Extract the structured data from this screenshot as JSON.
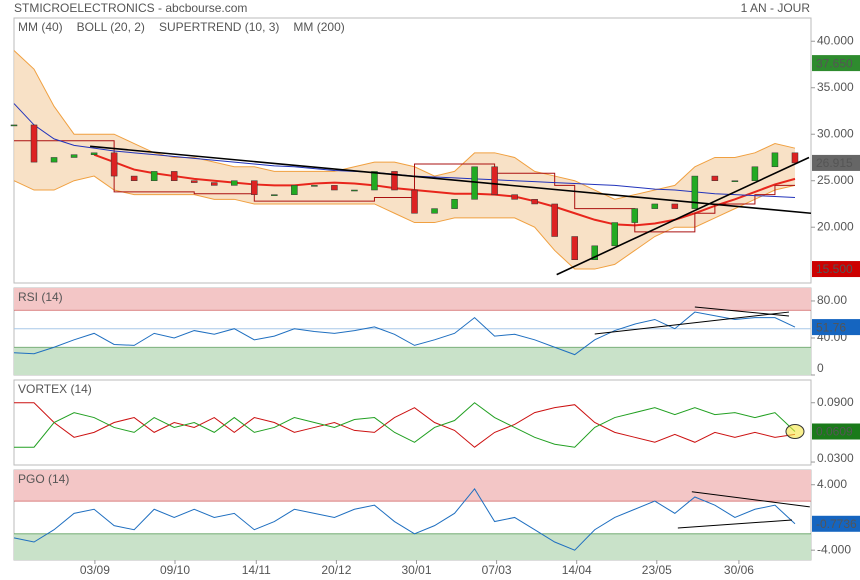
{
  "header": {
    "title": "STMICROELECTRONICS - abcbourse.com",
    "period": "1 AN - JOUR"
  },
  "chart_data": [
    {
      "type": "candlestick",
      "xlim": [
        0,
        39.8
      ],
      "ylim": [
        14,
        42.5
      ],
      "yticks": [
        {
          "value": 40,
          "label": "40.000"
        },
        {
          "value": 35,
          "label": "35.000"
        },
        {
          "value": 30,
          "label": "30.000"
        },
        {
          "value": 25,
          "label": "25.000"
        },
        {
          "value": 20,
          "label": "20.000"
        }
      ],
      "up_color": "#22aa22",
      "down_color": "#dd2222",
      "close": [
        31,
        27,
        27.5,
        27.8,
        28,
        25.5,
        25,
        26,
        25,
        24.8,
        24.5,
        25,
        23.5,
        23.5,
        24.5,
        24.5,
        24,
        24,
        26,
        24,
        21.5,
        22,
        23,
        26.5,
        23.5,
        23,
        22.5,
        19,
        16.5,
        18,
        20.5,
        22,
        22.5,
        22,
        25.5,
        25,
        25,
        26.5,
        28,
        26.915
      ],
      "bands": [
        {
          "name": "BOLL (20, 2)",
          "color": "#f0a040",
          "fill": "#f6d9b8",
          "upper": [
            39,
            37,
            33,
            30,
            30,
            30,
            29,
            28,
            27.5,
            27.5,
            27,
            26.5,
            26.5,
            26,
            26,
            26,
            26,
            26.5,
            27,
            27,
            26.5,
            25.5,
            26,
            28,
            28,
            27.5,
            26,
            25.5,
            25,
            24,
            23,
            23.5,
            24,
            24.5,
            26.5,
            27.5,
            27.5,
            28,
            29,
            28.5
          ],
          "lower": [
            25,
            24,
            24,
            25,
            25.5,
            24,
            23.5,
            23.5,
            23.5,
            23.5,
            23,
            23,
            22.5,
            22.5,
            22.5,
            22.5,
            22.5,
            22.5,
            22.5,
            21.5,
            20.5,
            20.5,
            21,
            21,
            21,
            21,
            20,
            17.5,
            15.5,
            15.5,
            16,
            17.5,
            19,
            20,
            20,
            21,
            22,
            23,
            24,
            24.5
          ]
        }
      ],
      "series": [
        {
          "name": "MM (40)",
          "color": "#e8261c",
          "width": 2,
          "values": [
            null,
            null,
            null,
            null,
            27.8,
            27,
            26.2,
            25.8,
            25.5,
            25.2,
            25,
            24.8,
            24.6,
            24.5,
            24.5,
            24.7,
            24.8,
            24.7,
            24.5,
            24.2,
            24,
            23.8,
            23.6,
            23.6,
            23.5,
            23.3,
            22.8,
            22.2,
            21.5,
            20.8,
            20.3,
            20.2,
            20.4,
            20.8,
            21.5,
            22.3,
            23,
            23.8,
            24.6,
            25.2
          ]
        },
        {
          "name": "SUPERTREND (10, 3)",
          "color": "#aa1010",
          "width": 1,
          "step": true,
          "values": [
            29.3,
            29.3,
            29.3,
            29.3,
            29.3,
            23.8,
            23.8,
            23.8,
            23.8,
            23.6,
            23.6,
            23.6,
            22.8,
            22.8,
            22.8,
            22.8,
            22.8,
            22.8,
            23.2,
            23.2,
            26.8,
            26.8,
            26.8,
            26.8,
            25.8,
            25.8,
            25.8,
            24.5,
            22,
            22,
            22,
            19.5,
            19.5,
            19.5,
            21.5,
            22.5,
            22.5,
            23.5,
            24.5,
            24.5
          ]
        },
        {
          "name": "MM (200)",
          "color": "#2233bb",
          "width": 1,
          "values": [
            33.3,
            31,
            29.5,
            28.8,
            28.5,
            28.2,
            28,
            27.8,
            27.6,
            27.4,
            27.2,
            27,
            26.8,
            26.6,
            26.5,
            26.3,
            26.1,
            26,
            25.9,
            25.7,
            25.5,
            25.4,
            25.3,
            25.2,
            25.1,
            25,
            24.9,
            24.8,
            24.7,
            24.6,
            24.5,
            24.3,
            24.1,
            24,
            23.8,
            23.6,
            23.5,
            23.4,
            23.3,
            23.2
          ]
        }
      ],
      "trendlines": [
        {
          "color": "#000000",
          "x": [
            3.8,
            39.8
          ],
          "y": [
            28.7,
            21.5
          ]
        },
        {
          "color": "#000000",
          "x": [
            27.1,
            39.7
          ],
          "y": [
            14.9,
            27.5
          ]
        }
      ],
      "badges": [
        {
          "value": 37.65,
          "label": "37.650",
          "color": "#2e8b2e"
        },
        {
          "value": 26.915,
          "label": "26.915",
          "color": "#666666"
        },
        {
          "value": 15.5,
          "label": "15.500",
          "color": "#cc0000"
        }
      ]
    },
    {
      "type": "line",
      "title": "RSI (14)",
      "xlim": [
        0,
        39.8
      ],
      "ylim": [
        0,
        94
      ],
      "yticks": [
        {
          "value": 80,
          "label": "80.00"
        },
        {
          "value": 40,
          "label": "40.00"
        },
        0
      ],
      "upper_zone": 70,
      "lower_zone": 30,
      "upper_color": "#f3c6c6",
      "lower_color": "#c9e2c9",
      "midline": 50,
      "midline_color": "#a8c8e8",
      "series": [
        {
          "color": "#1f6fc0",
          "values": [
            24,
            23,
            30,
            38,
            45,
            33,
            32,
            45,
            40,
            48,
            44,
            50,
            38,
            42,
            50,
            47,
            45,
            48,
            52,
            44,
            32,
            38,
            45,
            62,
            42,
            44,
            38,
            30,
            22,
            38,
            48,
            55,
            60,
            50,
            68,
            64,
            60,
            62,
            62,
            51.76
          ]
        }
      ],
      "trendlines": [
        {
          "color": "#000000",
          "x": [
            29.0,
            38.7
          ],
          "y": [
            44.3,
            68
          ]
        },
        {
          "color": "#000000",
          "x": [
            34.0,
            38.7
          ],
          "y": [
            73.5,
            63.8
          ]
        }
      ],
      "badges": [
        {
          "value": 51.76,
          "label": "51.76",
          "color": "#1565c0"
        }
      ]
    },
    {
      "type": "line",
      "title": "VORTEX (14)",
      "xlim": [
        0,
        39.8
      ],
      "ylim": [
        0.027,
        0.113
      ],
      "yticks": [
        {
          "value": 0.09,
          "label": "0.0900"
        },
        {
          "value": 0.03,
          "label": "0.0300"
        }
      ],
      "series": [
        {
          "color": "#cc1111",
          "values": [
            0.09,
            0.09,
            0.07,
            0.055,
            0.06,
            0.07,
            0.075,
            0.06,
            0.07,
            0.065,
            0.075,
            0.06,
            0.075,
            0.07,
            0.06,
            0.065,
            0.07,
            0.062,
            0.06,
            0.075,
            0.085,
            0.07,
            0.062,
            0.045,
            0.06,
            0.068,
            0.08,
            0.085,
            0.088,
            0.07,
            0.06,
            0.055,
            0.05,
            0.058,
            0.05,
            0.06,
            0.055,
            0.06,
            0.055,
            0.058
          ]
        },
        {
          "color": "#22a022",
          "values": [
            0.045,
            0.045,
            0.07,
            0.08,
            0.075,
            0.065,
            0.06,
            0.075,
            0.065,
            0.07,
            0.06,
            0.075,
            0.06,
            0.065,
            0.075,
            0.07,
            0.065,
            0.073,
            0.075,
            0.06,
            0.05,
            0.065,
            0.072,
            0.09,
            0.075,
            0.065,
            0.055,
            0.048,
            0.045,
            0.065,
            0.075,
            0.08,
            0.085,
            0.078,
            0.085,
            0.078,
            0.08,
            0.075,
            0.08,
            0.0609
          ]
        }
      ],
      "badges": [
        {
          "value": 0.0609,
          "label": "0.0609",
          "color": "#1a7a1a"
        }
      ]
    },
    {
      "type": "line",
      "title": "PGO (14)",
      "xlim": [
        0,
        39.8
      ],
      "ylim": [
        -5.2,
        5.8
      ],
      "yticks": [
        {
          "value": 4,
          "label": "4.000"
        },
        {
          "value": -4,
          "label": "-4.000"
        }
      ],
      "upper_zone": 2,
      "lower_zone": -2,
      "upper_color": "#f3c6c6",
      "lower_color": "#c9e2c9",
      "series": [
        {
          "color": "#1f6fc0",
          "values": [
            -2.5,
            -3,
            -1.5,
            0.5,
            1,
            -1,
            -1.5,
            1,
            0,
            1,
            0,
            0.5,
            -1.5,
            -0.5,
            1,
            0.5,
            0,
            1,
            1.5,
            -0.5,
            -2,
            -1,
            0.5,
            3.5,
            -0.5,
            0,
            -1.5,
            -3,
            -4,
            -1.5,
            0,
            1,
            2,
            0.5,
            2.5,
            1.5,
            0,
            1,
            1.5,
            -0.7736
          ]
        }
      ],
      "trendlines": [
        {
          "color": "#000000",
          "x": [
            33.15,
            38.85
          ],
          "y": [
            -1.29,
            -0.31
          ]
        },
        {
          "color": "#000000",
          "x": [
            33.85,
            39.74
          ],
          "y": [
            3.14,
            1.29
          ]
        }
      ],
      "badges": [
        {
          "value": -0.7736,
          "label": "-0.7736",
          "color": "#1565c0"
        }
      ],
      "xticks": [
        {
          "value": 4.04,
          "label": "03/09"
        },
        {
          "value": 8.04,
          "label": "09/10"
        },
        {
          "value": 12.1,
          "label": "14/11"
        },
        {
          "value": 16.1,
          "label": "20/12"
        },
        {
          "value": 20.1,
          "label": "30/01"
        },
        {
          "value": 24.1,
          "label": "07/03"
        },
        {
          "value": 28.1,
          "label": "14/04"
        },
        {
          "value": 32.1,
          "label": "23/05"
        },
        {
          "value": 36.2,
          "label": "30/06"
        }
      ]
    }
  ]
}
